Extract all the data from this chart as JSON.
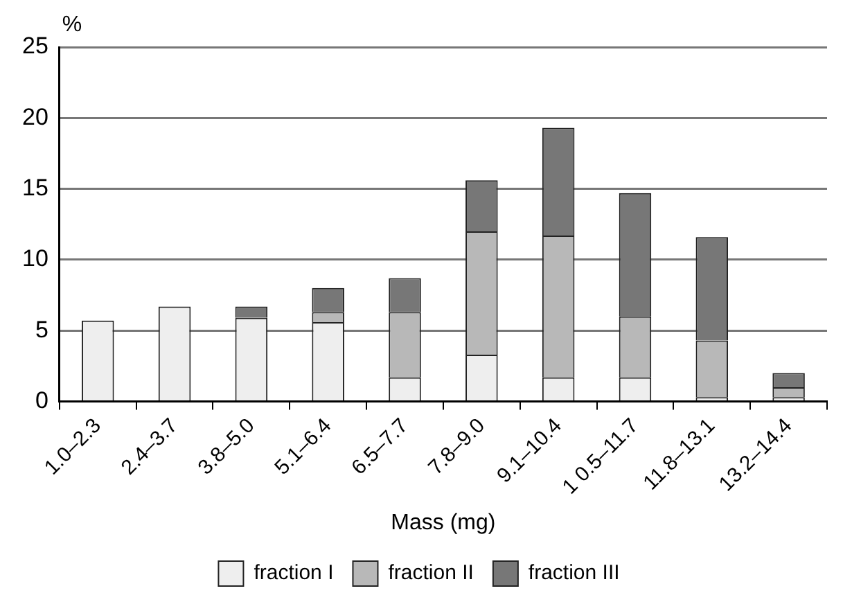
{
  "chart_data": {
    "type": "bar",
    "stacked": true,
    "ylabel": "%",
    "xlabel": "Mass (mg)",
    "categories": [
      "1.0–2.3",
      "2.4–3.7",
      "3.8–5.0",
      "5.1–6.4",
      "6.5–7.7",
      "7.8–9.0",
      "9.1–10.4",
      "1 0.5–11.7",
      "11.8–13.1",
      "13.2–14.4"
    ],
    "series": [
      {
        "name": "fraction I",
        "color": "#eeeeee",
        "values": [
          5.7,
          6.7,
          5.9,
          5.6,
          1.7,
          3.3,
          1.7,
          1.7,
          0.3,
          0.3
        ]
      },
      {
        "name": "fraction II",
        "color": "#b8b8b8",
        "values": [
          0,
          0,
          0,
          0.7,
          4.6,
          8.7,
          10.0,
          4.3,
          4.0,
          0.7
        ]
      },
      {
        "name": "fraction III",
        "color": "#777777",
        "values": [
          0,
          0,
          0.8,
          1.7,
          2.4,
          3.6,
          7.6,
          8.7,
          7.3,
          1.0
        ]
      }
    ],
    "ylim": [
      0,
      25
    ],
    "yticks": [
      0,
      5,
      10,
      15,
      20,
      25
    ],
    "grid": "y",
    "legend": "bottom"
  }
}
